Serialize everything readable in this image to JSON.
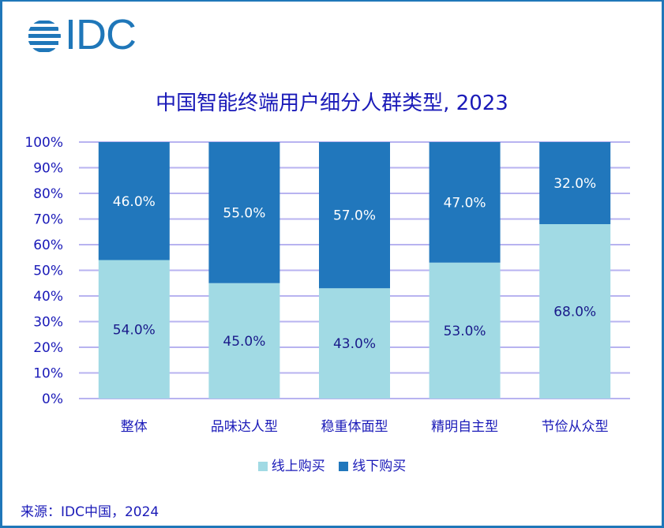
{
  "logo": {
    "text": "IDC"
  },
  "chart_data": {
    "type": "bar",
    "stacked": true,
    "title": "中国智能终端用户细分人群类型, 2023",
    "categories": [
      "整体",
      "品味达人型",
      "稳重体面型",
      "精明自主型",
      "节俭从众型"
    ],
    "series": [
      {
        "name": "线上购买",
        "values": [
          54.0,
          45.0,
          43.0,
          53.0,
          68.0
        ],
        "labels": [
          "54.0%",
          "45.0%",
          "43.0%",
          "53.0%",
          "68.0%"
        ],
        "color": "#a1dae4"
      },
      {
        "name": "线下购买",
        "values": [
          46.0,
          55.0,
          57.0,
          47.0,
          32.0
        ],
        "labels": [
          "46.0%",
          "55.0%",
          "57.0%",
          "47.0%",
          "32.0%"
        ],
        "color": "#2177bc"
      }
    ],
    "yticks": [
      "0%",
      "10%",
      "20%",
      "30%",
      "40%",
      "50%",
      "60%",
      "70%",
      "80%",
      "90%",
      "100%"
    ],
    "ylim": [
      0,
      100
    ],
    "xlabel": "",
    "ylabel": "",
    "grid": true,
    "legend_position": "bottom"
  },
  "source": "来源：IDC中国，2024",
  "colors": {
    "border": "#1f77b9",
    "text": "#1a1ab8",
    "grid": "#b8b3f0"
  }
}
